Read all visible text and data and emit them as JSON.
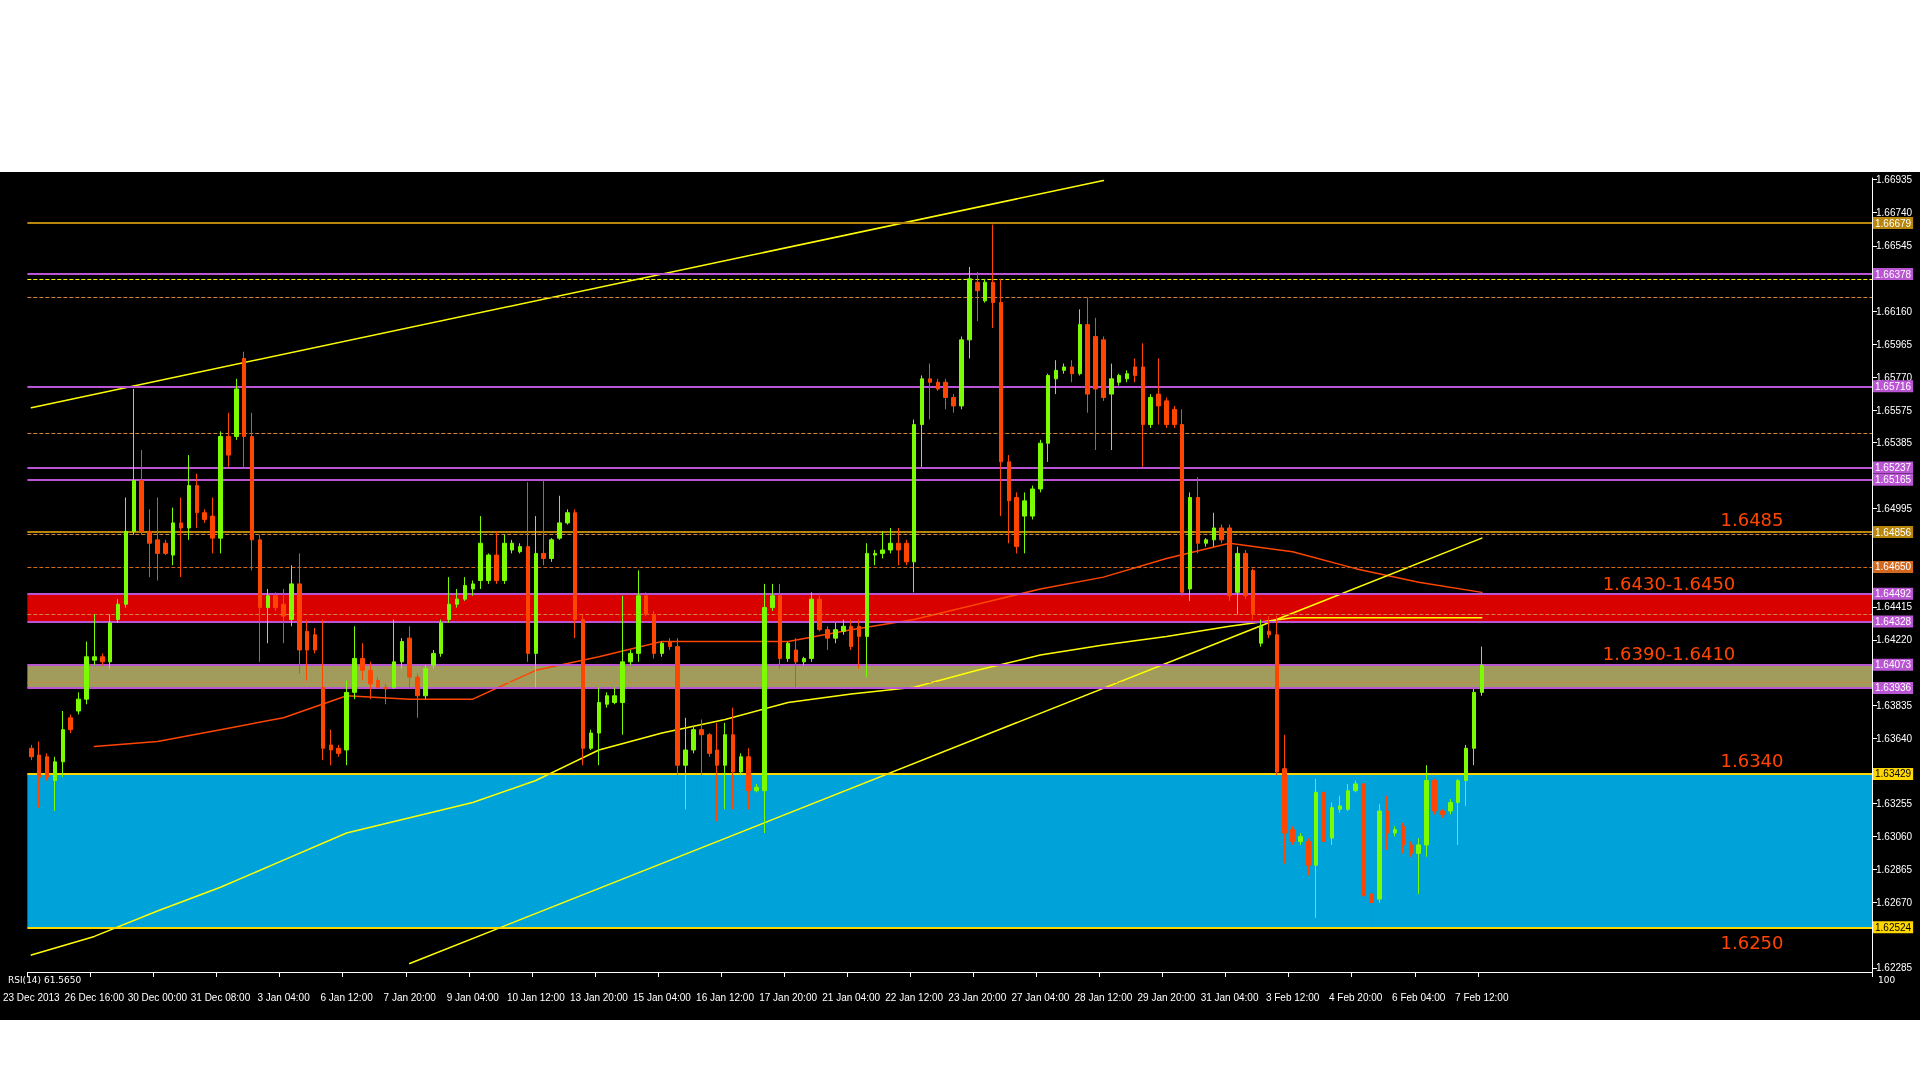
{
  "chart_data": {
    "type": "candlestick",
    "categories": [
      "23 Dec 2013",
      null,
      null,
      null,
      null,
      null,
      null,
      null,
      "26 Dec 16:00",
      null,
      null,
      null,
      null,
      null,
      null,
      null,
      "30 Dec 00:00",
      null,
      null,
      null,
      null,
      null,
      null,
      null,
      "31 Dec 08:00",
      null,
      null,
      null,
      null,
      null,
      null,
      null,
      "3 Jan 04:00",
      null,
      null,
      null,
      null,
      null,
      null,
      null,
      "6 Jan 12:00",
      null,
      null,
      null,
      null,
      null,
      null,
      null,
      "7 Jan 20:00",
      null,
      null,
      null,
      null,
      null,
      null,
      null,
      "9 Jan 04:00",
      null,
      null,
      null,
      null,
      null,
      null,
      null,
      "10 Jan 12:00",
      null,
      null,
      null,
      null,
      null,
      null,
      null,
      "13 Jan 20:00",
      null,
      null,
      null,
      null,
      null,
      null,
      null,
      "15 Jan 04:00",
      null,
      null,
      null,
      null,
      null,
      null,
      null,
      "16 Jan 12:00",
      null,
      null,
      null,
      null,
      null,
      null,
      null,
      "17 Jan 20:00",
      null,
      null,
      null,
      null,
      null,
      null,
      null,
      "21 Jan 04:00",
      null,
      null,
      null,
      null,
      null,
      null,
      null,
      "22 Jan 12:00",
      null,
      null,
      null,
      null,
      null,
      null,
      null,
      "23 Jan 20:00",
      null,
      null,
      null,
      null,
      null,
      null,
      null,
      "27 Jan 04:00",
      null,
      null,
      null,
      null,
      null,
      null,
      null,
      "28 Jan 12:00",
      null,
      null,
      null,
      null,
      null,
      null,
      null,
      "29 Jan 20:00",
      null,
      null,
      null,
      null,
      null,
      null,
      null,
      "31 Jan 04:00",
      null,
      null,
      null,
      null,
      null,
      null,
      null,
      "3 Feb 12:00",
      null,
      null,
      null,
      null,
      null,
      null,
      null,
      "4 Feb 20:00",
      null,
      null,
      null,
      null,
      null,
      null,
      null,
      "6 Feb 04:00",
      null,
      null,
      null,
      null,
      null,
      null,
      null,
      "7 Feb 12:00",
      null,
      null,
      null,
      null,
      null,
      null,
      null,
      null,
      null,
      null,
      null,
      null,
      null,
      null,
      null,
      null,
      null,
      null,
      null,
      null,
      null,
      null,
      null,
      null,
      null,
      null,
      null,
      null,
      null,
      null,
      null,
      null,
      null,
      null,
      null,
      null,
      null,
      null,
      null,
      null,
      null,
      null,
      null,
      null,
      null,
      null,
      null,
      null,
      null
    ],
    "ohlc": [
      [
        1.6358,
        1.636,
        1.6351,
        1.6353
      ],
      [
        1.6354,
        1.6362,
        1.6323,
        1.6341
      ],
      [
        1.6353,
        1.6355,
        1.6339,
        1.6341
      ],
      [
        1.6339,
        1.6353,
        1.6321,
        1.635
      ],
      [
        1.635,
        1.638,
        1.6341,
        1.6369
      ],
      [
        1.6376,
        1.6378,
        1.6367,
        1.6369
      ],
      [
        1.638,
        1.6391,
        1.6378,
        1.6387
      ],
      [
        1.6387,
        1.6421,
        1.6384,
        1.6412
      ],
      [
        1.641,
        1.6437,
        1.6407,
        1.6412
      ],
      [
        1.6412,
        1.6414,
        1.6407,
        1.6409
      ],
      [
        1.6409,
        1.6437,
        1.6405,
        1.6432
      ],
      [
        1.6434,
        1.6446,
        1.6432,
        1.6443
      ],
      [
        1.6443,
        1.6506,
        1.6441,
        1.6486
      ],
      [
        1.6486,
        1.657,
        1.6484,
        1.6516
      ],
      [
        1.6516,
        1.6534,
        1.6484,
        1.6486
      ],
      [
        1.6486,
        1.6499,
        1.6459,
        1.6479
      ],
      [
        1.6481,
        1.6506,
        1.6457,
        1.6473
      ],
      [
        1.6479,
        1.6481,
        1.6472,
        1.6473
      ],
      [
        1.6472,
        1.65,
        1.6466,
        1.6491
      ],
      [
        1.6491,
        1.6506,
        1.6459,
        1.6488
      ],
      [
        1.6488,
        1.6531,
        1.6481,
        1.6513
      ],
      [
        1.6513,
        1.652,
        1.6488,
        1.6497
      ],
      [
        1.6497,
        1.6499,
        1.6491,
        1.6493
      ],
      [
        1.6495,
        1.6506,
        1.6473,
        1.6482
      ],
      [
        1.6482,
        1.6545,
        1.6473,
        1.6542
      ],
      [
        1.6542,
        1.6556,
        1.6524,
        1.6531
      ],
      [
        1.6542,
        1.6576,
        1.654,
        1.657
      ],
      [
        1.6588,
        1.6592,
        1.6524,
        1.6542
      ],
      [
        1.6542,
        1.6556,
        1.6463,
        1.6481
      ],
      [
        1.6481,
        1.6484,
        1.6409,
        1.6441
      ],
      [
        1.6441,
        1.6452,
        1.642,
        1.6448
      ],
      [
        1.6448,
        1.645,
        1.6439,
        1.6441
      ],
      [
        1.6443,
        1.6452,
        1.642,
        1.6436
      ],
      [
        1.6434,
        1.6466,
        1.643,
        1.6455
      ],
      [
        1.6455,
        1.6473,
        1.6402,
        1.6416
      ],
      [
        1.6427,
        1.6434,
        1.6398,
        1.6416
      ],
      [
        1.6425,
        1.6429,
        1.6414,
        1.6416
      ],
      [
        1.6394,
        1.6434,
        1.6351,
        1.6358
      ],
      [
        1.636,
        1.6369,
        1.6348,
        1.6357
      ],
      [
        1.6358,
        1.636,
        1.6353,
        1.6355
      ],
      [
        1.6357,
        1.6398,
        1.6348,
        1.6391
      ],
      [
        1.6391,
        1.643,
        1.6387,
        1.6411
      ],
      [
        1.6411,
        1.642,
        1.6398,
        1.6404
      ],
      [
        1.6404,
        1.6409,
        1.6387,
        1.6396
      ],
      [
        1.6398,
        1.64,
        1.6393,
        1.6394
      ],
      [
        1.6394,
        1.6396,
        1.6384,
        1.6393
      ],
      [
        1.6394,
        1.6434,
        1.6393,
        1.6409
      ],
      [
        1.6409,
        1.6423,
        1.6405,
        1.6421
      ],
      [
        1.6423,
        1.643,
        1.6394,
        1.64
      ],
      [
        1.64,
        1.6402,
        1.6376,
        1.6389
      ],
      [
        1.6389,
        1.6407,
        1.6387,
        1.6405
      ],
      [
        1.6407,
        1.6416,
        1.6405,
        1.6414
      ],
      [
        1.6414,
        1.6434,
        1.6412,
        1.6432
      ],
      [
        1.6434,
        1.6459,
        1.6432,
        1.6443
      ],
      [
        1.6443,
        1.6452,
        1.6441,
        1.6446
      ],
      [
        1.6446,
        1.6459,
        1.6445,
        1.6454
      ],
      [
        1.6452,
        1.6457,
        1.6448,
        1.6455
      ],
      [
        1.6457,
        1.6495,
        1.6452,
        1.6479
      ],
      [
        1.6457,
        1.6473,
        1.6455,
        1.6472
      ],
      [
        1.6472,
        1.6486,
        1.6455,
        1.6457
      ],
      [
        1.6457,
        1.6484,
        1.6455,
        1.6479
      ],
      [
        1.6475,
        1.6481,
        1.6473,
        1.6479
      ],
      [
        1.6474,
        1.6479,
        1.6473,
        1.6477
      ],
      [
        1.6477,
        1.6515,
        1.6409,
        1.6414
      ],
      [
        1.6414,
        1.6495,
        1.6394,
        1.6473
      ],
      [
        1.6473,
        1.6516,
        1.6466,
        1.647
      ],
      [
        1.647,
        1.6482,
        1.6468,
        1.6481
      ],
      [
        1.6482,
        1.6507,
        1.6481,
        1.6491
      ],
      [
        1.6491,
        1.6499,
        1.649,
        1.6497
      ],
      [
        1.6497,
        1.6499,
        1.6423,
        1.6434
      ],
      [
        1.6434,
        1.6437,
        1.6348,
        1.6358
      ],
      [
        1.6358,
        1.6369,
        1.6357,
        1.6367
      ],
      [
        1.6367,
        1.6394,
        1.6348,
        1.6385
      ],
      [
        1.6384,
        1.6391,
        1.6382,
        1.6389
      ],
      [
        1.6385,
        1.6394,
        1.6384,
        1.6389
      ],
      [
        1.6385,
        1.6448,
        1.6366,
        1.6409
      ],
      [
        1.6409,
        1.6416,
        1.6407,
        1.6414
      ],
      [
        1.6414,
        1.6463,
        1.6409,
        1.6448
      ],
      [
        1.6448,
        1.645,
        1.6436,
        1.6437
      ],
      [
        1.6437,
        1.6439,
        1.6411,
        1.6414
      ],
      [
        1.6414,
        1.6421,
        1.6412,
        1.642
      ],
      [
        1.6421,
        1.6423,
        1.6416,
        1.6418
      ],
      [
        1.6418,
        1.6423,
        1.6326,
        1.6348
      ],
      [
        1.6348,
        1.6376,
        1.6322,
        1.6357
      ],
      [
        1.6357,
        1.6371,
        1.6355,
        1.6369
      ],
      [
        1.6369,
        1.6375,
        1.6324,
        1.6366
      ],
      [
        1.6366,
        1.6367,
        1.6353,
        1.6355
      ],
      [
        1.6357,
        1.6373,
        1.6315,
        1.6348
      ],
      [
        1.6348,
        1.6373,
        1.6322,
        1.6366
      ],
      [
        1.6366,
        1.6382,
        1.6322,
        1.6344
      ],
      [
        1.6344,
        1.6355,
        1.6342,
        1.6353
      ],
      [
        1.6353,
        1.6358,
        1.6322,
        1.6333
      ],
      [
        1.6333,
        1.6337,
        1.6332,
        1.6335
      ],
      [
        1.6333,
        1.6455,
        1.6308,
        1.6441
      ],
      [
        1.6441,
        1.6455,
        1.6439,
        1.6448
      ],
      [
        1.6448,
        1.6455,
        1.6405,
        1.6411
      ],
      [
        1.6411,
        1.6421,
        1.6409,
        1.642
      ],
      [
        1.6416,
        1.6423,
        1.6394,
        1.6409
      ],
      [
        1.6409,
        1.6412,
        1.6407,
        1.6411
      ],
      [
        1.6411,
        1.645,
        1.6409,
        1.6446
      ],
      [
        1.6446,
        1.6448,
        1.6427,
        1.6428
      ],
      [
        1.6428,
        1.643,
        1.6416,
        1.6423
      ],
      [
        1.6423,
        1.6432,
        1.642,
        1.6428
      ],
      [
        1.6427,
        1.6434,
        1.6425,
        1.643
      ],
      [
        1.643,
        1.6434,
        1.6416,
        1.6418
      ],
      [
        1.643,
        1.6434,
        1.6405,
        1.6424
      ],
      [
        1.6424,
        1.6479,
        1.64,
        1.6473
      ],
      [
        1.6472,
        1.6475,
        1.6466,
        1.6473
      ],
      [
        1.6473,
        1.6486,
        1.647,
        1.6475
      ],
      [
        1.6475,
        1.6488,
        1.6473,
        1.6479
      ],
      [
        1.6479,
        1.6488,
        1.6466,
        1.6475
      ],
      [
        1.6479,
        1.6481,
        1.6466,
        1.6468
      ],
      [
        1.6468,
        1.6552,
        1.645,
        1.6549
      ],
      [
        1.6549,
        1.6578,
        1.6524,
        1.6576
      ],
      [
        1.6576,
        1.6585,
        1.6552,
        1.6574
      ],
      [
        1.6574,
        1.6576,
        1.6569,
        1.657
      ],
      [
        1.6574,
        1.6576,
        1.6558,
        1.6565
      ],
      [
        1.6565,
        1.6567,
        1.6556,
        1.656
      ],
      [
        1.656,
        1.6601,
        1.6558,
        1.6599
      ],
      [
        1.6599,
        1.6642,
        1.6588,
        1.6635
      ],
      [
        1.6633,
        1.6639,
        1.661,
        1.6628
      ],
      [
        1.6622,
        1.6635,
        1.6621,
        1.6633
      ],
      [
        1.6633,
        1.6667,
        1.6606,
        1.6621
      ],
      [
        1.6621,
        1.6635,
        1.6495,
        1.6527
      ],
      [
        1.6527,
        1.6531,
        1.6479,
        1.6504
      ],
      [
        1.6506,
        1.6509,
        1.6473,
        1.6477
      ],
      [
        1.6495,
        1.6509,
        1.6473,
        1.6504
      ],
      [
        1.6495,
        1.6513,
        1.6493,
        1.6511
      ],
      [
        1.6511,
        1.654,
        1.6509,
        1.6538
      ],
      [
        1.6538,
        1.6579,
        1.6527,
        1.6578
      ],
      [
        1.6576,
        1.6587,
        1.6567,
        1.6581
      ],
      [
        1.6581,
        1.6585,
        1.6579,
        1.6583
      ],
      [
        1.6583,
        1.6587,
        1.6574,
        1.6579
      ],
      [
        1.6579,
        1.6617,
        1.6578,
        1.6608
      ],
      [
        1.6608,
        1.6624,
        1.6556,
        1.6567
      ],
      [
        1.6601,
        1.6612,
        1.6534,
        1.657
      ],
      [
        1.6599,
        1.6601,
        1.6563,
        1.6565
      ],
      [
        1.6567,
        1.6585,
        1.6534,
        1.6576
      ],
      [
        1.6574,
        1.6579,
        1.6572,
        1.6578
      ],
      [
        1.6576,
        1.6581,
        1.6574,
        1.6579
      ],
      [
        1.6583,
        1.6588,
        1.6574,
        1.6578
      ],
      [
        1.6583,
        1.6597,
        1.6524,
        1.6549
      ],
      [
        1.6549,
        1.6567,
        1.6547,
        1.6565
      ],
      [
        1.6567,
        1.6588,
        1.6549,
        1.656
      ],
      [
        1.6563,
        1.6565,
        1.6547,
        1.6549
      ],
      [
        1.6558,
        1.656,
        1.6547,
        1.6549
      ],
      [
        1.6549,
        1.6558,
        1.6448,
        1.645
      ],
      [
        1.6452,
        1.6509,
        1.6445,
        1.6506
      ],
      [
        1.6506,
        1.6518,
        1.6473,
        1.6479
      ],
      [
        1.6479,
        1.6482,
        1.6477,
        1.6481
      ],
      [
        1.6481,
        1.6497,
        1.6477,
        1.6488
      ],
      [
        1.6488,
        1.649,
        1.6479,
        1.6481
      ],
      [
        1.6488,
        1.649,
        1.6445,
        1.6448
      ],
      [
        1.645,
        1.6477,
        1.6437,
        1.6473
      ],
      [
        1.6473,
        1.6475,
        1.6446,
        1.6448
      ],
      [
        1.6463,
        1.6464,
        1.6434,
        1.6437
      ],
      [
        1.642,
        1.6434,
        1.6418,
        1.643
      ],
      [
        1.6427,
        1.6436,
        1.6423,
        1.6425
      ],
      [
        1.6425,
        1.6436,
        1.6342,
        1.6344
      ],
      [
        1.6346,
        1.6366,
        1.629,
        1.6308
      ],
      [
        1.631,
        1.6312,
        1.6301,
        1.6303
      ],
      [
        1.6303,
        1.6308,
        1.6301,
        1.6306
      ],
      [
        1.6303,
        1.6305,
        1.6283,
        1.6289
      ],
      [
        1.6289,
        1.634,
        1.6258,
        1.6332
      ],
      [
        1.6332,
        1.634,
        1.6296,
        1.6303
      ],
      [
        1.6305,
        1.6326,
        1.6301,
        1.6323
      ],
      [
        1.6322,
        1.633,
        1.632,
        1.6324
      ],
      [
        1.6322,
        1.6337,
        1.6321,
        1.6333
      ],
      [
        1.6333,
        1.6339,
        1.6332,
        1.6337
      ],
      [
        1.6337,
        1.6339,
        1.6265,
        1.6271
      ],
      [
        1.6272,
        1.6276,
        1.6253,
        1.6267
      ],
      [
        1.6269,
        1.6325,
        1.6267,
        1.6321
      ],
      [
        1.6321,
        1.633,
        1.6298,
        1.6308
      ],
      [
        1.6308,
        1.6312,
        1.6306,
        1.631
      ],
      [
        1.6312,
        1.6314,
        1.6296,
        1.6301
      ],
      [
        1.6301,
        1.6303,
        1.6294,
        1.6296
      ],
      [
        1.6296,
        1.6305,
        1.6272,
        1.6301
      ],
      [
        1.6301,
        1.6348,
        1.6294,
        1.6339
      ],
      [
        1.6339,
        1.634,
        1.6319,
        1.6321
      ],
      [
        1.6321,
        1.6322,
        1.6317,
        1.6319
      ],
      [
        1.6321,
        1.6328,
        1.6319,
        1.6326
      ],
      [
        1.6326,
        1.634,
        1.6301,
        1.6339
      ],
      [
        1.6339,
        1.636,
        1.6324,
        1.6358
      ],
      [
        1.6358,
        1.6393,
        1.6348,
        1.6391
      ],
      [
        1.6391,
        1.6418,
        1.6389,
        1.6407
      ],
      null,
      null,
      null,
      null,
      null,
      null,
      null,
      null,
      null,
      null,
      null,
      null,
      null,
      null,
      null,
      null,
      null,
      null,
      null,
      null,
      null,
      null,
      null,
      null,
      null,
      null,
      null,
      null,
      null,
      null,
      null,
      null,
      null,
      null,
      null,
      null,
      null,
      null,
      null,
      null,
      null,
      null,
      null,
      null,
      null,
      null,
      null,
      null,
      null
    ],
    "series": [
      {
        "type": "line",
        "color": "#ff4500",
        "x": [
          "26 Dec 16:00",
          "30 Dec 00:00",
          "31 Dec 08:00",
          "3 Jan 04:00",
          "6 Jan 12:00",
          "7 Jan 20:00",
          "9 Jan 04:00",
          "10 Jan 12:00",
          "13 Jan 20:00",
          "15 Jan 04:00",
          "16 Jan 12:00",
          "17 Jan 20:00",
          "21 Jan 04:00",
          "22 Jan 12:00",
          "23 Jan 20:00",
          "27 Jan 04:00",
          "28 Jan 12:00",
          "29 Jan 20:00",
          "31 Jan 04:00",
          "3 Feb 12:00",
          "4 Feb 20:00",
          "6 Feb 04:00",
          "7 Feb 12:00"
        ],
        "values": [
          1.6359,
          1.6362,
          1.6369,
          1.6376,
          1.6389,
          1.6387,
          1.6387,
          1.6404,
          1.6412,
          1.6421,
          1.6421,
          1.6421,
          1.6428,
          1.6434,
          1.6443,
          1.6452,
          1.6459,
          1.647,
          1.6479,
          1.6474,
          1.6464,
          1.6456,
          1.645
        ]
      },
      {
        "type": "line",
        "color": "#ffff00",
        "x": [
          "23 Dec 2013",
          "26 Dec 16:00",
          "30 Dec 00:00",
          "31 Dec 08:00",
          "3 Jan 04:00",
          "6 Jan 12:00",
          "7 Jan 20:00",
          "9 Jan 04:00",
          "10 Jan 12:00",
          "13 Jan 20:00",
          "15 Jan 04:00",
          "16 Jan 12:00",
          "17 Jan 20:00",
          "21 Jan 04:00",
          "22 Jan 12:00",
          "23 Jan 20:00",
          "27 Jan 04:00",
          "28 Jan 12:00",
          "29 Jan 20:00",
          "31 Jan 04:00",
          "3 Feb 12:00",
          "4 Feb 20:00",
          "6 Feb 04:00",
          "7 Feb 12:00"
        ],
        "values": [
          1.6236,
          1.6247,
          1.6262,
          1.6276,
          1.6292,
          1.6308,
          1.6317,
          1.6326,
          1.6339,
          1.6357,
          1.6367,
          1.6375,
          1.6385,
          1.639,
          1.6394,
          1.6404,
          1.6413,
          1.6419,
          1.6424,
          1.643,
          1.6435,
          1.6435,
          1.6435,
          1.6435
        ]
      },
      {
        "type": "line",
        "color": "#ffff00",
        "x": [
          "23 Dec 2013",
          "28 Jan 12:00"
        ],
        "values": [
          1.6559,
          1.6693
        ]
      },
      {
        "type": "line",
        "color": "#ffff00",
        "x": [
          "7 Jan 20:00",
          "7 Feb 12:00"
        ],
        "values": [
          1.6231,
          1.6482
        ]
      }
    ],
    "ylim": [
      1.6226,
      1.66945
    ],
    "yticks": [
      {
        "value": 1.66935,
        "label": "1.66935"
      },
      {
        "value": 1.6674,
        "label": "1.66740"
      },
      {
        "value": 1.66545,
        "label": "1.66545"
      },
      {
        "value": 1.6616,
        "label": "1.66160"
      },
      {
        "value": 1.65965,
        "label": "1.65965"
      },
      {
        "value": 1.6577,
        "label": "1.65770"
      },
      {
        "value": 1.65575,
        "label": "1.65575"
      },
      {
        "value": 1.65385,
        "label": "1.65385"
      },
      {
        "value": 1.64995,
        "label": "1.64995"
      },
      {
        "value": 1.64415,
        "label": "1.64415"
      },
      {
        "value": 1.6422,
        "label": "1.64220"
      },
      {
        "value": 1.63835,
        "label": "1.63835"
      },
      {
        "value": 1.6364,
        "label": "1.63640"
      },
      {
        "value": 1.63255,
        "label": "1.63255"
      },
      {
        "value": 1.6306,
        "label": "1.63060"
      },
      {
        "value": 1.62865,
        "label": "1.62865"
      },
      {
        "value": 1.6267,
        "label": "1.62670"
      },
      {
        "value": 1.62285,
        "label": "1.62285"
      }
    ],
    "bands": [
      {
        "axis": "y",
        "from": 1.62524,
        "to": 1.63429,
        "color": "#00bfff"
      },
      {
        "axis": "y",
        "from": 1.6433,
        "to": 1.6449,
        "label": "1.6430-1.6450",
        "color": "#ff0000"
      },
      {
        "axis": "y",
        "from": 1.63936,
        "to": 1.64073,
        "label": "1.6390-1.6410",
        "color": "#bdb76b"
      }
    ],
    "ref_lines": [
      {
        "axis": "y",
        "value": 1.66679,
        "label": "1.66679",
        "color": "#b8860b"
      },
      {
        "axis": "y",
        "value": 1.66378,
        "label": "1.66378",
        "color": "#ba55d3"
      },
      {
        "axis": "y",
        "value": 1.65716,
        "label": "1.65716",
        "color": "#ba55d3"
      },
      {
        "axis": "y",
        "value": 1.65237,
        "label": "1.65237",
        "color": "#ba55d3"
      },
      {
        "axis": "y",
        "value": 1.65165,
        "label": "1.65165",
        "color": "#ba55d3"
      },
      {
        "axis": "y",
        "value": 1.64856,
        "label": "1.64856",
        "color": "#b8860b"
      },
      {
        "axis": "y",
        "value": 1.6465,
        "label": "1.64650",
        "color": "#d2691e",
        "line_style": "dashed"
      },
      {
        "axis": "y",
        "value": 1.64492,
        "label": "1.64492",
        "color": "#ba55d3"
      },
      {
        "axis": "y",
        "value": 1.64328,
        "label": "1.64328",
        "color": "#ba55d3"
      },
      {
        "axis": "y",
        "value": 1.64073,
        "label": "1.64073",
        "color": "#ba55d3"
      },
      {
        "axis": "y",
        "value": 1.63936,
        "label": "1.63936",
        "color": "#ba55d3"
      },
      {
        "axis": "y",
        "value": 1.63429,
        "label": "1.63429",
        "color": "#ffd700"
      },
      {
        "axis": "y",
        "value": 1.62524,
        "label": "1.62524",
        "color": "#ffd700"
      },
      {
        "axis": "y",
        "value": 1.6635,
        "color": "#ffff00",
        "line_style": "dashed"
      },
      {
        "axis": "y",
        "value": 1.6624,
        "color": "#cd853f",
        "line_style": "dashed"
      },
      {
        "axis": "y",
        "value": 1.6544,
        "color": "#cd853f",
        "line_style": "dashed"
      },
      {
        "axis": "y",
        "value": 1.6484,
        "color": "#cd853f",
        "line_style": "dashed"
      },
      {
        "axis": "y",
        "value": 1.6437,
        "color": "#cd853f",
        "line_style": "dashed"
      },
      {
        "axis": "y",
        "value": 1.6397,
        "color": "#cd853f",
        "line_style": "dashed"
      }
    ],
    "annotations": [
      {
        "text": "1.6485",
        "y": 1.64856
      },
      {
        "text": "1.6340",
        "y": 1.63429
      },
      {
        "text": "1.6250",
        "y": 1.62524
      },
      "RSI(14) 61.5650",
      "100"
    ]
  }
}
